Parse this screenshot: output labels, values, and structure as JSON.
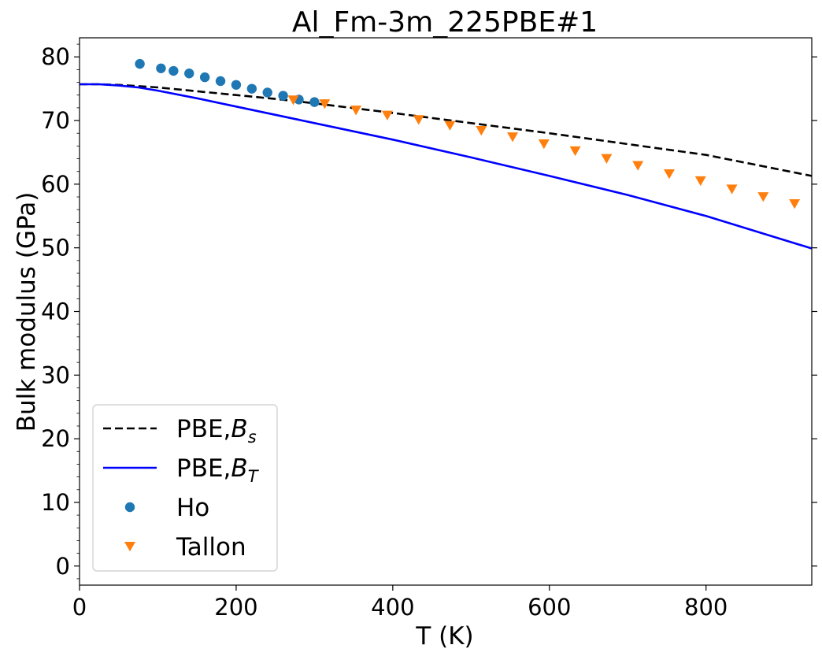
{
  "chart_data": {
    "type": "scatter",
    "title": "Al_Fm-3m_225PBE#1",
    "xlabel": "T (K)",
    "ylabel": "Bulk modulus (GPa)",
    "xlim": [
      0,
      935
    ],
    "ylim": [
      -3,
      83
    ],
    "xticks": [
      0,
      200,
      400,
      600,
      800
    ],
    "yticks": [
      0,
      10,
      20,
      30,
      40,
      50,
      60,
      70,
      80
    ],
    "grid": false,
    "legend_position": "lower-left",
    "series": [
      {
        "name": "PBE,B_s",
        "legend_main": "PBE,",
        "legend_sym": "B",
        "legend_sub": "s",
        "kind": "line",
        "style": "dashed",
        "color": "#000000",
        "x": [
          0,
          25,
          50,
          75,
          100,
          150,
          200,
          250,
          300,
          400,
          500,
          600,
          700,
          800,
          935
        ],
        "y": [
          75.7,
          75.7,
          75.6,
          75.4,
          75.2,
          74.6,
          74.0,
          73.4,
          72.7,
          71.2,
          69.6,
          68.0,
          66.3,
          64.6,
          61.3
        ]
      },
      {
        "name": "PBE,B_T",
        "legend_main": "PBE,",
        "legend_sym": "B",
        "legend_sub": "T",
        "kind": "line",
        "style": "solid",
        "color": "#0000ff",
        "x": [
          0,
          25,
          50,
          75,
          100,
          150,
          200,
          250,
          300,
          400,
          500,
          600,
          700,
          800,
          935
        ],
        "y": [
          75.7,
          75.7,
          75.5,
          75.2,
          74.7,
          73.5,
          72.2,
          70.9,
          69.6,
          67.0,
          64.2,
          61.3,
          58.3,
          55.0,
          49.9
        ]
      },
      {
        "name": "Ho",
        "legend_main": "Ho",
        "kind": "marker",
        "marker": "circle",
        "color": "#1f77b4",
        "x": [
          77,
          104,
          120,
          140,
          160,
          180,
          200,
          220,
          240,
          260,
          280,
          300
        ],
        "y": [
          78.9,
          78.2,
          77.8,
          77.4,
          76.8,
          76.2,
          75.6,
          75.0,
          74.4,
          73.9,
          73.3,
          72.9
        ]
      },
      {
        "name": "Tallon",
        "legend_main": "Tallon",
        "kind": "marker",
        "marker": "triangle-down",
        "color": "#ff7f0e",
        "x": [
          273,
          313,
          353,
          393,
          433,
          473,
          513,
          553,
          593,
          633,
          673,
          713,
          753,
          793,
          833,
          873,
          913
        ],
        "y": [
          73.2,
          72.6,
          71.6,
          70.8,
          70.1,
          69.2,
          68.4,
          67.4,
          66.3,
          65.2,
          64.0,
          62.9,
          61.6,
          60.5,
          59.2,
          58.0,
          56.9
        ]
      }
    ]
  }
}
